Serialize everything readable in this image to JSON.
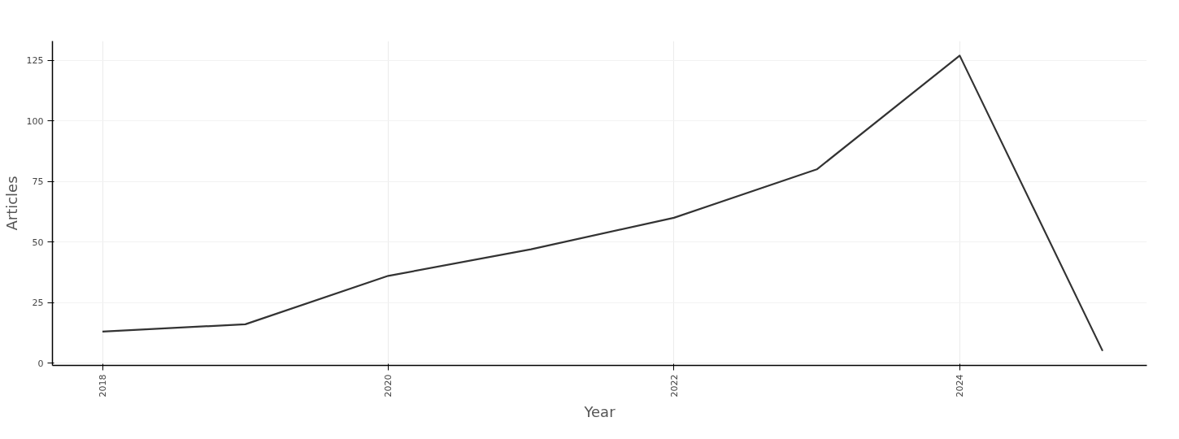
{
  "chart_data": {
    "type": "line",
    "xlabel": "Year",
    "ylabel": "Articles",
    "x": [
      2018,
      2019,
      2020,
      2021,
      2022,
      2023,
      2024,
      2025
    ],
    "series": [
      {
        "color": "#333333",
        "values": [
          13,
          16,
          36,
          47,
          60,
          80,
          127,
          5
        ]
      }
    ],
    "xlim": [
      2017.65,
      2025.31
    ],
    "ylim": [
      -1,
      133
    ],
    "xticks": [
      2018,
      2020,
      2022,
      2024
    ],
    "yticks": [
      0,
      25,
      50,
      75,
      100,
      125
    ],
    "grid": true,
    "marker": "none",
    "line_style": "solid"
  }
}
